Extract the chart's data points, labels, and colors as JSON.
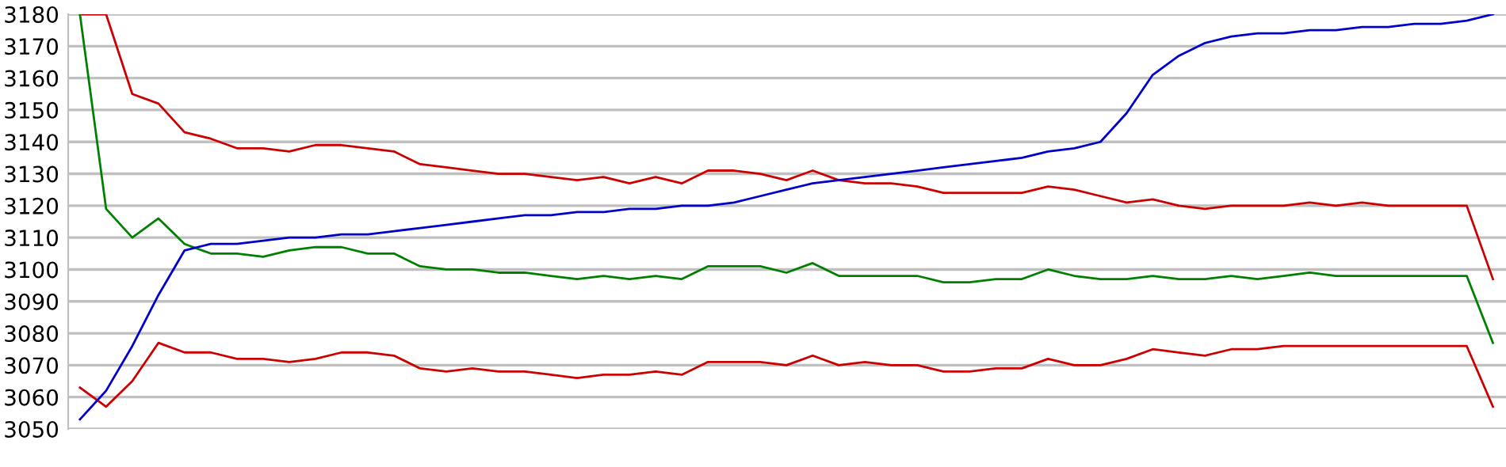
{
  "chart_data": {
    "type": "line",
    "categories": [
      null,
      null,
      null,
      null,
      null,
      null,
      null,
      null,
      null,
      null,
      null,
      null,
      null,
      null,
      null,
      null,
      null,
      null,
      null,
      null,
      null,
      null,
      null,
      null,
      null,
      null,
      null,
      null,
      null,
      null,
      null,
      null,
      null,
      null,
      null,
      null,
      null,
      null,
      null,
      null,
      null,
      null,
      null,
      null,
      null,
      null,
      null,
      null,
      null,
      null,
      null,
      null,
      null,
      null,
      null
    ],
    "series": [
      {
        "color": "#cc0000",
        "values": [
          3180,
          3180,
          3155,
          3152,
          3143,
          3141,
          3138,
          3138,
          3137,
          3139,
          3139,
          3138,
          3137,
          3133,
          3132,
          3131,
          3130,
          3130,
          3129,
          3128,
          3129,
          3127,
          3129,
          3127,
          3131,
          3131,
          3130,
          3128,
          3131,
          3128,
          3127,
          3127,
          3126,
          3124,
          3124,
          3124,
          3124,
          3126,
          3125,
          3123,
          3121,
          3122,
          3120,
          3119,
          3120,
          3120,
          3120,
          3121,
          3120,
          3121,
          3120,
          3120,
          3120,
          3120,
          3097
        ]
      },
      {
        "color": "#008000",
        "values": [
          3180,
          3119,
          3110,
          3116,
          3108,
          3105,
          3105,
          3104,
          3106,
          3107,
          3107,
          3105,
          3105,
          3101,
          3100,
          3100,
          3099,
          3099,
          3098,
          3097,
          3098,
          3097,
          3098,
          3097,
          3101,
          3101,
          3101,
          3099,
          3102,
          3098,
          3098,
          3098,
          3098,
          3096,
          3096,
          3097,
          3097,
          3100,
          3098,
          3097,
          3097,
          3098,
          3097,
          3097,
          3098,
          3097,
          3098,
          3099,
          3098,
          3098,
          3098,
          3098,
          3098,
          3098,
          3077
        ]
      },
      {
        "color": "#cc0000",
        "values": [
          3063,
          3057,
          3065,
          3077,
          3074,
          3074,
          3072,
          3072,
          3071,
          3072,
          3074,
          3074,
          3073,
          3069,
          3068,
          3069,
          3068,
          3068,
          3067,
          3066,
          3067,
          3067,
          3068,
          3067,
          3071,
          3071,
          3071,
          3070,
          3073,
          3070,
          3071,
          3070,
          3070,
          3068,
          3068,
          3069,
          3069,
          3072,
          3070,
          3070,
          3072,
          3075,
          3074,
          3073,
          3075,
          3075,
          3076,
          3076,
          3076,
          3076,
          3076,
          3076,
          3076,
          3076,
          3057
        ]
      },
      {
        "color": "#0000cc",
        "values": [
          3053,
          3062,
          3076,
          3092,
          3106,
          3108,
          3108,
          3109,
          3110,
          3110,
          3111,
          3111,
          3112,
          3113,
          3114,
          3115,
          3116,
          3117,
          3117,
          3118,
          3118,
          3119,
          3119,
          3120,
          3120,
          3121,
          3123,
          3125,
          3127,
          3128,
          3129,
          3130,
          3131,
          3132,
          3133,
          3134,
          3135,
          3137,
          3138,
          3140,
          3149,
          3161,
          3167,
          3171,
          3173,
          3174,
          3174,
          3175,
          3175,
          3176,
          3176,
          3177,
          3177,
          3178,
          3180
        ]
      }
    ],
    "ylim": [
      3050,
      3180
    ],
    "yticks": [
      3050,
      3060,
      3070,
      3080,
      3090,
      3100,
      3110,
      3120,
      3130,
      3140,
      3150,
      3160,
      3170,
      3180
    ],
    "grid": "y",
    "tick_labels": "y",
    "marker": "none",
    "line_style": "solid"
  }
}
